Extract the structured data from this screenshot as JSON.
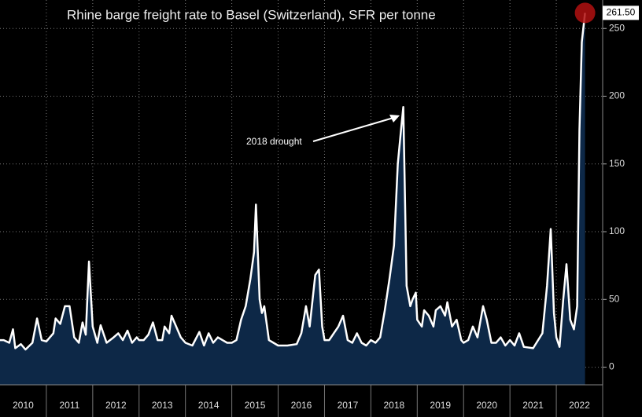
{
  "chart_data": {
    "type": "area-line",
    "title": "Rhine barge freight rate to Basel (Switzerland), SFR per tonne",
    "annotation": "2018 drought",
    "x": [
      2010.0,
      2010.08,
      2010.2,
      2010.28,
      2010.33,
      2010.45,
      2010.55,
      2010.7,
      2010.8,
      2010.9,
      2011.0,
      2011.15,
      2011.2,
      2011.3,
      2011.4,
      2011.5,
      2011.6,
      2011.7,
      2011.78,
      2011.85,
      2011.92,
      2012.0,
      2012.1,
      2012.17,
      2012.3,
      2012.45,
      2012.55,
      2012.65,
      2012.75,
      2012.85,
      2012.95,
      2013.0,
      2013.1,
      2013.2,
      2013.3,
      2013.4,
      2013.5,
      2013.55,
      2013.65,
      2013.7,
      2013.8,
      2013.9,
      2014.0,
      2014.15,
      2014.3,
      2014.4,
      2014.5,
      2014.6,
      2014.7,
      2014.8,
      2014.9,
      2015.0,
      2015.1,
      2015.2,
      2015.3,
      2015.4,
      2015.48,
      2015.52,
      2015.6,
      2015.65,
      2015.7,
      2015.8,
      2015.9,
      2016.0,
      2016.2,
      2016.4,
      2016.5,
      2016.6,
      2016.68,
      2016.8,
      2016.88,
      2016.95,
      2017.0,
      2017.1,
      2017.2,
      2017.3,
      2017.4,
      2017.5,
      2017.6,
      2017.7,
      2017.8,
      2017.9,
      2018.0,
      2018.1,
      2018.2,
      2018.3,
      2018.4,
      2018.5,
      2018.58,
      2018.65,
      2018.7,
      2018.77,
      2018.85,
      2018.9,
      2018.97,
      2019.0,
      2019.1,
      2019.15,
      2019.25,
      2019.35,
      2019.4,
      2019.5,
      2019.6,
      2019.65,
      2019.75,
      2019.85,
      2019.95,
      2020.0,
      2020.1,
      2020.2,
      2020.3,
      2020.42,
      2020.5,
      2020.6,
      2020.7,
      2020.8,
      2020.9,
      2021.0,
      2021.1,
      2021.2,
      2021.3,
      2021.5,
      2021.7,
      2021.8,
      2021.88,
      2021.95,
      2022.0,
      2022.07,
      2022.15,
      2022.22,
      2022.3,
      2022.38,
      2022.45,
      2022.5,
      2022.55,
      2022.62
    ],
    "values": [
      20,
      20,
      18,
      28,
      14,
      17,
      13,
      18,
      36,
      20,
      19,
      25,
      36,
      32,
      45,
      45,
      22,
      18,
      33,
      24,
      78,
      30,
      18,
      31,
      18,
      22,
      25,
      20,
      27,
      18,
      22,
      20,
      20,
      24,
      33,
      20,
      20,
      30,
      25,
      38,
      30,
      22,
      18,
      16,
      26,
      16,
      25,
      18,
      22,
      20,
      18,
      18,
      20,
      35,
      45,
      65,
      85,
      120,
      50,
      40,
      45,
      20,
      18,
      16,
      16,
      17,
      25,
      45,
      30,
      68,
      72,
      30,
      20,
      20,
      25,
      30,
      38,
      20,
      18,
      25,
      18,
      16,
      20,
      18,
      22,
      42,
      65,
      90,
      150,
      175,
      192,
      60,
      45,
      50,
      55,
      35,
      30,
      42,
      38,
      30,
      42,
      45,
      38,
      48,
      30,
      35,
      20,
      18,
      20,
      30,
      22,
      45,
      35,
      18,
      18,
      22,
      16,
      20,
      16,
      25,
      15,
      14,
      25,
      60,
      102,
      40,
      22,
      15,
      50,
      76,
      35,
      28,
      45,
      175,
      240,
      261.5
    ],
    "last_value_label": "261.50",
    "line_color": "#ffffff",
    "area_color": "#0d2847",
    "marker_color": "#b01010",
    "xlim": [
      2010,
      2023
    ],
    "xticks": [
      {
        "value": 2010.5,
        "label": "2010"
      },
      {
        "value": 2011.5,
        "label": "2011"
      },
      {
        "value": 2012.5,
        "label": "2012"
      },
      {
        "value": 2013.5,
        "label": "2013"
      },
      {
        "value": 2014.5,
        "label": "2014"
      },
      {
        "value": 2015.5,
        "label": "2015"
      },
      {
        "value": 2016.5,
        "label": "2016"
      },
      {
        "value": 2017.5,
        "label": "2017"
      },
      {
        "value": 2018.5,
        "label": "2018"
      },
      {
        "value": 2019.5,
        "label": "2019"
      },
      {
        "value": 2020.5,
        "label": "2020"
      },
      {
        "value": 2021.5,
        "label": "2021"
      },
      {
        "value": 2022.5,
        "label": "2022"
      }
    ],
    "ylim": [
      -13,
      271
    ],
    "yticks": [
      0,
      50,
      100,
      150,
      200,
      250
    ],
    "grid": true
  }
}
